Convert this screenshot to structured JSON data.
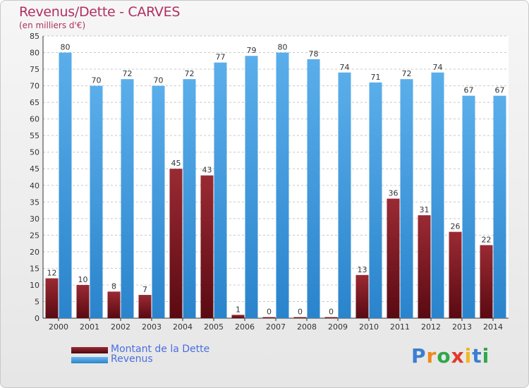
{
  "colors": {
    "title": "#b03060",
    "dette": "#7a1520",
    "revenus": "#3a9be0",
    "legend_text": "#4a6ee0"
  },
  "logo": {
    "text": "Proxiti"
  },
  "chart_data": {
    "type": "bar",
    "title": "Revenus/Dette - CARVES",
    "subtitle": "(en milliers d'€)",
    "categories": [
      "2000",
      "2001",
      "2002",
      "2003",
      "2004",
      "2005",
      "2006",
      "2007",
      "2008",
      "2009",
      "2010",
      "2011",
      "2012",
      "2013",
      "2014"
    ],
    "series": [
      {
        "name": "Montant de la Dette",
        "values": [
          12,
          10,
          8,
          7,
          45,
          43,
          1,
          0,
          0,
          0,
          13,
          36,
          31,
          26,
          22
        ]
      },
      {
        "name": "Revenus",
        "values": [
          80,
          70,
          72,
          70,
          72,
          77,
          79,
          80,
          78,
          74,
          71,
          72,
          74,
          67,
          67
        ]
      }
    ],
    "ylim": [
      0,
      85
    ],
    "ytick_step": 5,
    "grid": true,
    "legend": "bottom-left"
  }
}
